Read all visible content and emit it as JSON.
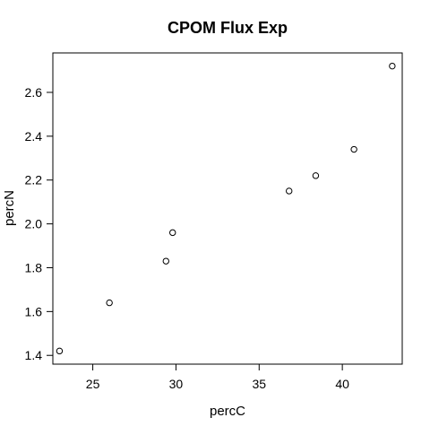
{
  "chart_data": {
    "type": "scatter",
    "title": "CPOM Flux Exp",
    "xlabel": "percC",
    "ylabel": "percN",
    "xlim": [
      22.6,
      43.6
    ],
    "ylim": [
      1.36,
      2.78
    ],
    "x_ticks": [
      25,
      30,
      35,
      40
    ],
    "y_ticks": [
      1.4,
      1.6,
      1.8,
      2.0,
      2.2,
      2.4,
      2.6
    ],
    "x_tick_labels": [
      "25",
      "30",
      "35",
      "40"
    ],
    "y_tick_labels": [
      "1.4",
      "1.6",
      "1.8",
      "2.0",
      "2.2",
      "2.4",
      "2.6"
    ],
    "grid": false,
    "marker": "open-circle",
    "points": [
      {
        "x": 23.0,
        "y": 1.42
      },
      {
        "x": 26.0,
        "y": 1.64
      },
      {
        "x": 29.4,
        "y": 1.83
      },
      {
        "x": 29.8,
        "y": 1.96
      },
      {
        "x": 36.8,
        "y": 2.15
      },
      {
        "x": 38.4,
        "y": 2.22
      },
      {
        "x": 40.7,
        "y": 2.34
      },
      {
        "x": 43.0,
        "y": 2.72
      }
    ]
  }
}
